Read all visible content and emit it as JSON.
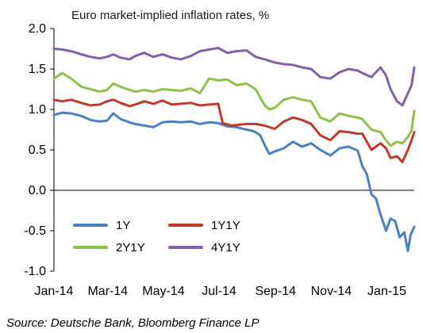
{
  "chart_data": {
    "type": "line",
    "title": "Euro market-implied inflation rates, %",
    "source": "Source: Deutsche Bank, Bloomberg Finance LP",
    "xlabel": "",
    "ylabel": "",
    "ylim": [
      -1.0,
      2.0
    ],
    "yticks": [
      "2.0",
      "1.5",
      "1.0",
      "0.5",
      "0.0",
      "-0.5",
      "-1.0"
    ],
    "x_start": "2014-01-01",
    "x_end": "2015-01-31",
    "x_ticks": [
      {
        "date": "2014-01-01",
        "label": "Jan-14"
      },
      {
        "date": "2014-03-01",
        "label": "Mar-14"
      },
      {
        "date": "2014-05-01",
        "label": "May-14"
      },
      {
        "date": "2014-07-01",
        "label": "Jul-14"
      },
      {
        "date": "2014-09-01",
        "label": "Sep-14"
      },
      {
        "date": "2014-11-01",
        "label": "Nov-14"
      },
      {
        "date": "2015-01-01",
        "label": "Jan-15"
      }
    ],
    "grid": false,
    "legend": {
      "placement": "bottom-left",
      "columns": 2
    },
    "series": [
      {
        "name": "1Y",
        "color": "#4a7fc1",
        "points": [
          [
            "2014-01-01",
            0.93
          ],
          [
            "2014-01-10",
            0.96
          ],
          [
            "2014-01-20",
            0.95
          ],
          [
            "2014-01-31",
            0.92
          ],
          [
            "2014-02-10",
            0.87
          ],
          [
            "2014-02-20",
            0.85
          ],
          [
            "2014-02-28",
            0.86
          ],
          [
            "2014-03-07",
            0.95
          ],
          [
            "2014-03-15",
            0.88
          ],
          [
            "2014-03-25",
            0.84
          ],
          [
            "2014-03-31",
            0.82
          ],
          [
            "2014-04-10",
            0.8
          ],
          [
            "2014-04-20",
            0.78
          ],
          [
            "2014-04-30",
            0.84
          ],
          [
            "2014-05-10",
            0.85
          ],
          [
            "2014-05-20",
            0.84
          ],
          [
            "2014-05-31",
            0.85
          ],
          [
            "2014-06-10",
            0.82
          ],
          [
            "2014-06-20",
            0.84
          ],
          [
            "2014-06-30",
            0.83
          ],
          [
            "2014-07-10",
            0.79
          ],
          [
            "2014-07-20",
            0.78
          ],
          [
            "2014-07-31",
            0.75
          ],
          [
            "2014-08-05",
            0.74
          ],
          [
            "2014-08-10",
            0.72
          ],
          [
            "2014-08-15",
            0.68
          ],
          [
            "2014-08-20",
            0.56
          ],
          [
            "2014-08-25",
            0.45
          ],
          [
            "2014-08-31",
            0.48
          ],
          [
            "2014-09-10",
            0.52
          ],
          [
            "2014-09-20",
            0.6
          ],
          [
            "2014-09-30",
            0.54
          ],
          [
            "2014-10-10",
            0.58
          ],
          [
            "2014-10-20",
            0.5
          ],
          [
            "2014-10-31",
            0.43
          ],
          [
            "2014-11-10",
            0.52
          ],
          [
            "2014-11-20",
            0.54
          ],
          [
            "2014-11-30",
            0.49
          ],
          [
            "2014-12-05",
            0.3
          ],
          [
            "2014-12-10",
            0.2
          ],
          [
            "2014-12-15",
            -0.05
          ],
          [
            "2014-12-20",
            -0.1
          ],
          [
            "2014-12-25",
            -0.3
          ],
          [
            "2014-12-31",
            -0.5
          ],
          [
            "2015-01-05",
            -0.35
          ],
          [
            "2015-01-10",
            -0.38
          ],
          [
            "2015-01-15",
            -0.58
          ],
          [
            "2015-01-20",
            -0.52
          ],
          [
            "2015-01-24",
            -0.75
          ],
          [
            "2015-01-27",
            -0.55
          ],
          [
            "2015-01-31",
            -0.45
          ]
        ]
      },
      {
        "name": "1Y1Y",
        "color": "#c0392b",
        "points": [
          [
            "2014-01-01",
            1.12
          ],
          [
            "2014-01-10",
            1.1
          ],
          [
            "2014-01-20",
            1.12
          ],
          [
            "2014-01-31",
            1.08
          ],
          [
            "2014-02-10",
            1.05
          ],
          [
            "2014-02-20",
            1.06
          ],
          [
            "2014-02-28",
            1.1
          ],
          [
            "2014-03-07",
            1.12
          ],
          [
            "2014-03-15",
            1.08
          ],
          [
            "2014-03-25",
            1.04
          ],
          [
            "2014-03-31",
            1.06
          ],
          [
            "2014-04-10",
            1.1
          ],
          [
            "2014-04-20",
            1.07
          ],
          [
            "2014-04-30",
            1.11
          ],
          [
            "2014-05-10",
            1.06
          ],
          [
            "2014-05-20",
            1.07
          ],
          [
            "2014-05-31",
            1.08
          ],
          [
            "2014-06-10",
            1.05
          ],
          [
            "2014-06-20",
            1.06
          ],
          [
            "2014-06-30",
            1.07
          ],
          [
            "2014-07-05",
            0.83
          ],
          [
            "2014-07-15",
            0.8
          ],
          [
            "2014-07-31",
            0.82
          ],
          [
            "2014-08-10",
            0.82
          ],
          [
            "2014-08-20",
            0.8
          ],
          [
            "2014-08-31",
            0.76
          ],
          [
            "2014-09-10",
            0.85
          ],
          [
            "2014-09-20",
            0.9
          ],
          [
            "2014-09-30",
            0.87
          ],
          [
            "2014-10-10",
            0.82
          ],
          [
            "2014-10-20",
            0.68
          ],
          [
            "2014-10-31",
            0.62
          ],
          [
            "2014-11-10",
            0.73
          ],
          [
            "2014-11-20",
            0.72
          ],
          [
            "2014-11-30",
            0.7
          ],
          [
            "2014-12-05",
            0.7
          ],
          [
            "2014-12-15",
            0.5
          ],
          [
            "2014-12-25",
            0.58
          ],
          [
            "2014-12-31",
            0.52
          ],
          [
            "2015-01-05",
            0.4
          ],
          [
            "2015-01-12",
            0.42
          ],
          [
            "2015-01-18",
            0.35
          ],
          [
            "2015-01-24",
            0.5
          ],
          [
            "2015-01-28",
            0.62
          ],
          [
            "2015-01-31",
            0.72
          ]
        ]
      },
      {
        "name": "2Y1Y",
        "color": "#8fc04a",
        "points": [
          [
            "2014-01-01",
            1.38
          ],
          [
            "2014-01-10",
            1.45
          ],
          [
            "2014-01-20",
            1.38
          ],
          [
            "2014-01-31",
            1.28
          ],
          [
            "2014-02-10",
            1.25
          ],
          [
            "2014-02-20",
            1.22
          ],
          [
            "2014-02-28",
            1.24
          ],
          [
            "2014-03-07",
            1.32
          ],
          [
            "2014-03-15",
            1.28
          ],
          [
            "2014-03-25",
            1.24
          ],
          [
            "2014-03-31",
            1.22
          ],
          [
            "2014-04-10",
            1.24
          ],
          [
            "2014-04-20",
            1.22
          ],
          [
            "2014-04-30",
            1.25
          ],
          [
            "2014-05-10",
            1.24
          ],
          [
            "2014-05-20",
            1.23
          ],
          [
            "2014-05-31",
            1.26
          ],
          [
            "2014-06-10",
            1.2
          ],
          [
            "2014-06-20",
            1.38
          ],
          [
            "2014-06-30",
            1.36
          ],
          [
            "2014-07-10",
            1.37
          ],
          [
            "2014-07-20",
            1.3
          ],
          [
            "2014-07-31",
            1.32
          ],
          [
            "2014-08-10",
            1.25
          ],
          [
            "2014-08-20",
            1.05
          ],
          [
            "2014-08-25",
            1.0
          ],
          [
            "2014-08-31",
            1.02
          ],
          [
            "2014-09-10",
            1.12
          ],
          [
            "2014-09-20",
            1.15
          ],
          [
            "2014-09-30",
            1.12
          ],
          [
            "2014-10-10",
            1.1
          ],
          [
            "2014-10-20",
            0.9
          ],
          [
            "2014-10-31",
            0.85
          ],
          [
            "2014-11-10",
            0.95
          ],
          [
            "2014-11-20",
            0.92
          ],
          [
            "2014-11-30",
            0.9
          ],
          [
            "2014-12-05",
            0.88
          ],
          [
            "2014-12-15",
            0.75
          ],
          [
            "2014-12-25",
            0.72
          ],
          [
            "2014-12-31",
            0.62
          ],
          [
            "2015-01-05",
            0.55
          ],
          [
            "2015-01-12",
            0.6
          ],
          [
            "2015-01-18",
            0.58
          ],
          [
            "2015-01-24",
            0.66
          ],
          [
            "2015-01-28",
            0.74
          ],
          [
            "2015-01-31",
            0.98
          ]
        ]
      },
      {
        "name": "4Y1Y",
        "color": "#8062a6",
        "points": [
          [
            "2014-01-01",
            1.75
          ],
          [
            "2014-01-10",
            1.74
          ],
          [
            "2014-01-20",
            1.72
          ],
          [
            "2014-01-31",
            1.68
          ],
          [
            "2014-02-10",
            1.65
          ],
          [
            "2014-02-20",
            1.63
          ],
          [
            "2014-02-28",
            1.65
          ],
          [
            "2014-03-07",
            1.68
          ],
          [
            "2014-03-15",
            1.64
          ],
          [
            "2014-03-25",
            1.62
          ],
          [
            "2014-03-31",
            1.66
          ],
          [
            "2014-04-10",
            1.7
          ],
          [
            "2014-04-20",
            1.65
          ],
          [
            "2014-04-30",
            1.68
          ],
          [
            "2014-05-10",
            1.64
          ],
          [
            "2014-05-20",
            1.62
          ],
          [
            "2014-05-31",
            1.66
          ],
          [
            "2014-06-10",
            1.72
          ],
          [
            "2014-06-20",
            1.74
          ],
          [
            "2014-06-30",
            1.76
          ],
          [
            "2014-07-10",
            1.7
          ],
          [
            "2014-07-20",
            1.72
          ],
          [
            "2014-07-31",
            1.73
          ],
          [
            "2014-08-10",
            1.65
          ],
          [
            "2014-08-20",
            1.62
          ],
          [
            "2014-08-31",
            1.58
          ],
          [
            "2014-09-10",
            1.56
          ],
          [
            "2014-09-20",
            1.55
          ],
          [
            "2014-09-30",
            1.52
          ],
          [
            "2014-10-10",
            1.5
          ],
          [
            "2014-10-20",
            1.4
          ],
          [
            "2014-10-31",
            1.38
          ],
          [
            "2014-11-10",
            1.46
          ],
          [
            "2014-11-20",
            1.5
          ],
          [
            "2014-11-30",
            1.48
          ],
          [
            "2014-12-05",
            1.45
          ],
          [
            "2014-12-15",
            1.4
          ],
          [
            "2014-12-25",
            1.52
          ],
          [
            "2014-12-31",
            1.42
          ],
          [
            "2015-01-05",
            1.25
          ],
          [
            "2015-01-12",
            1.1
          ],
          [
            "2015-01-18",
            1.05
          ],
          [
            "2015-01-24",
            1.2
          ],
          [
            "2015-01-28",
            1.3
          ],
          [
            "2015-01-31",
            1.52
          ]
        ]
      }
    ]
  }
}
